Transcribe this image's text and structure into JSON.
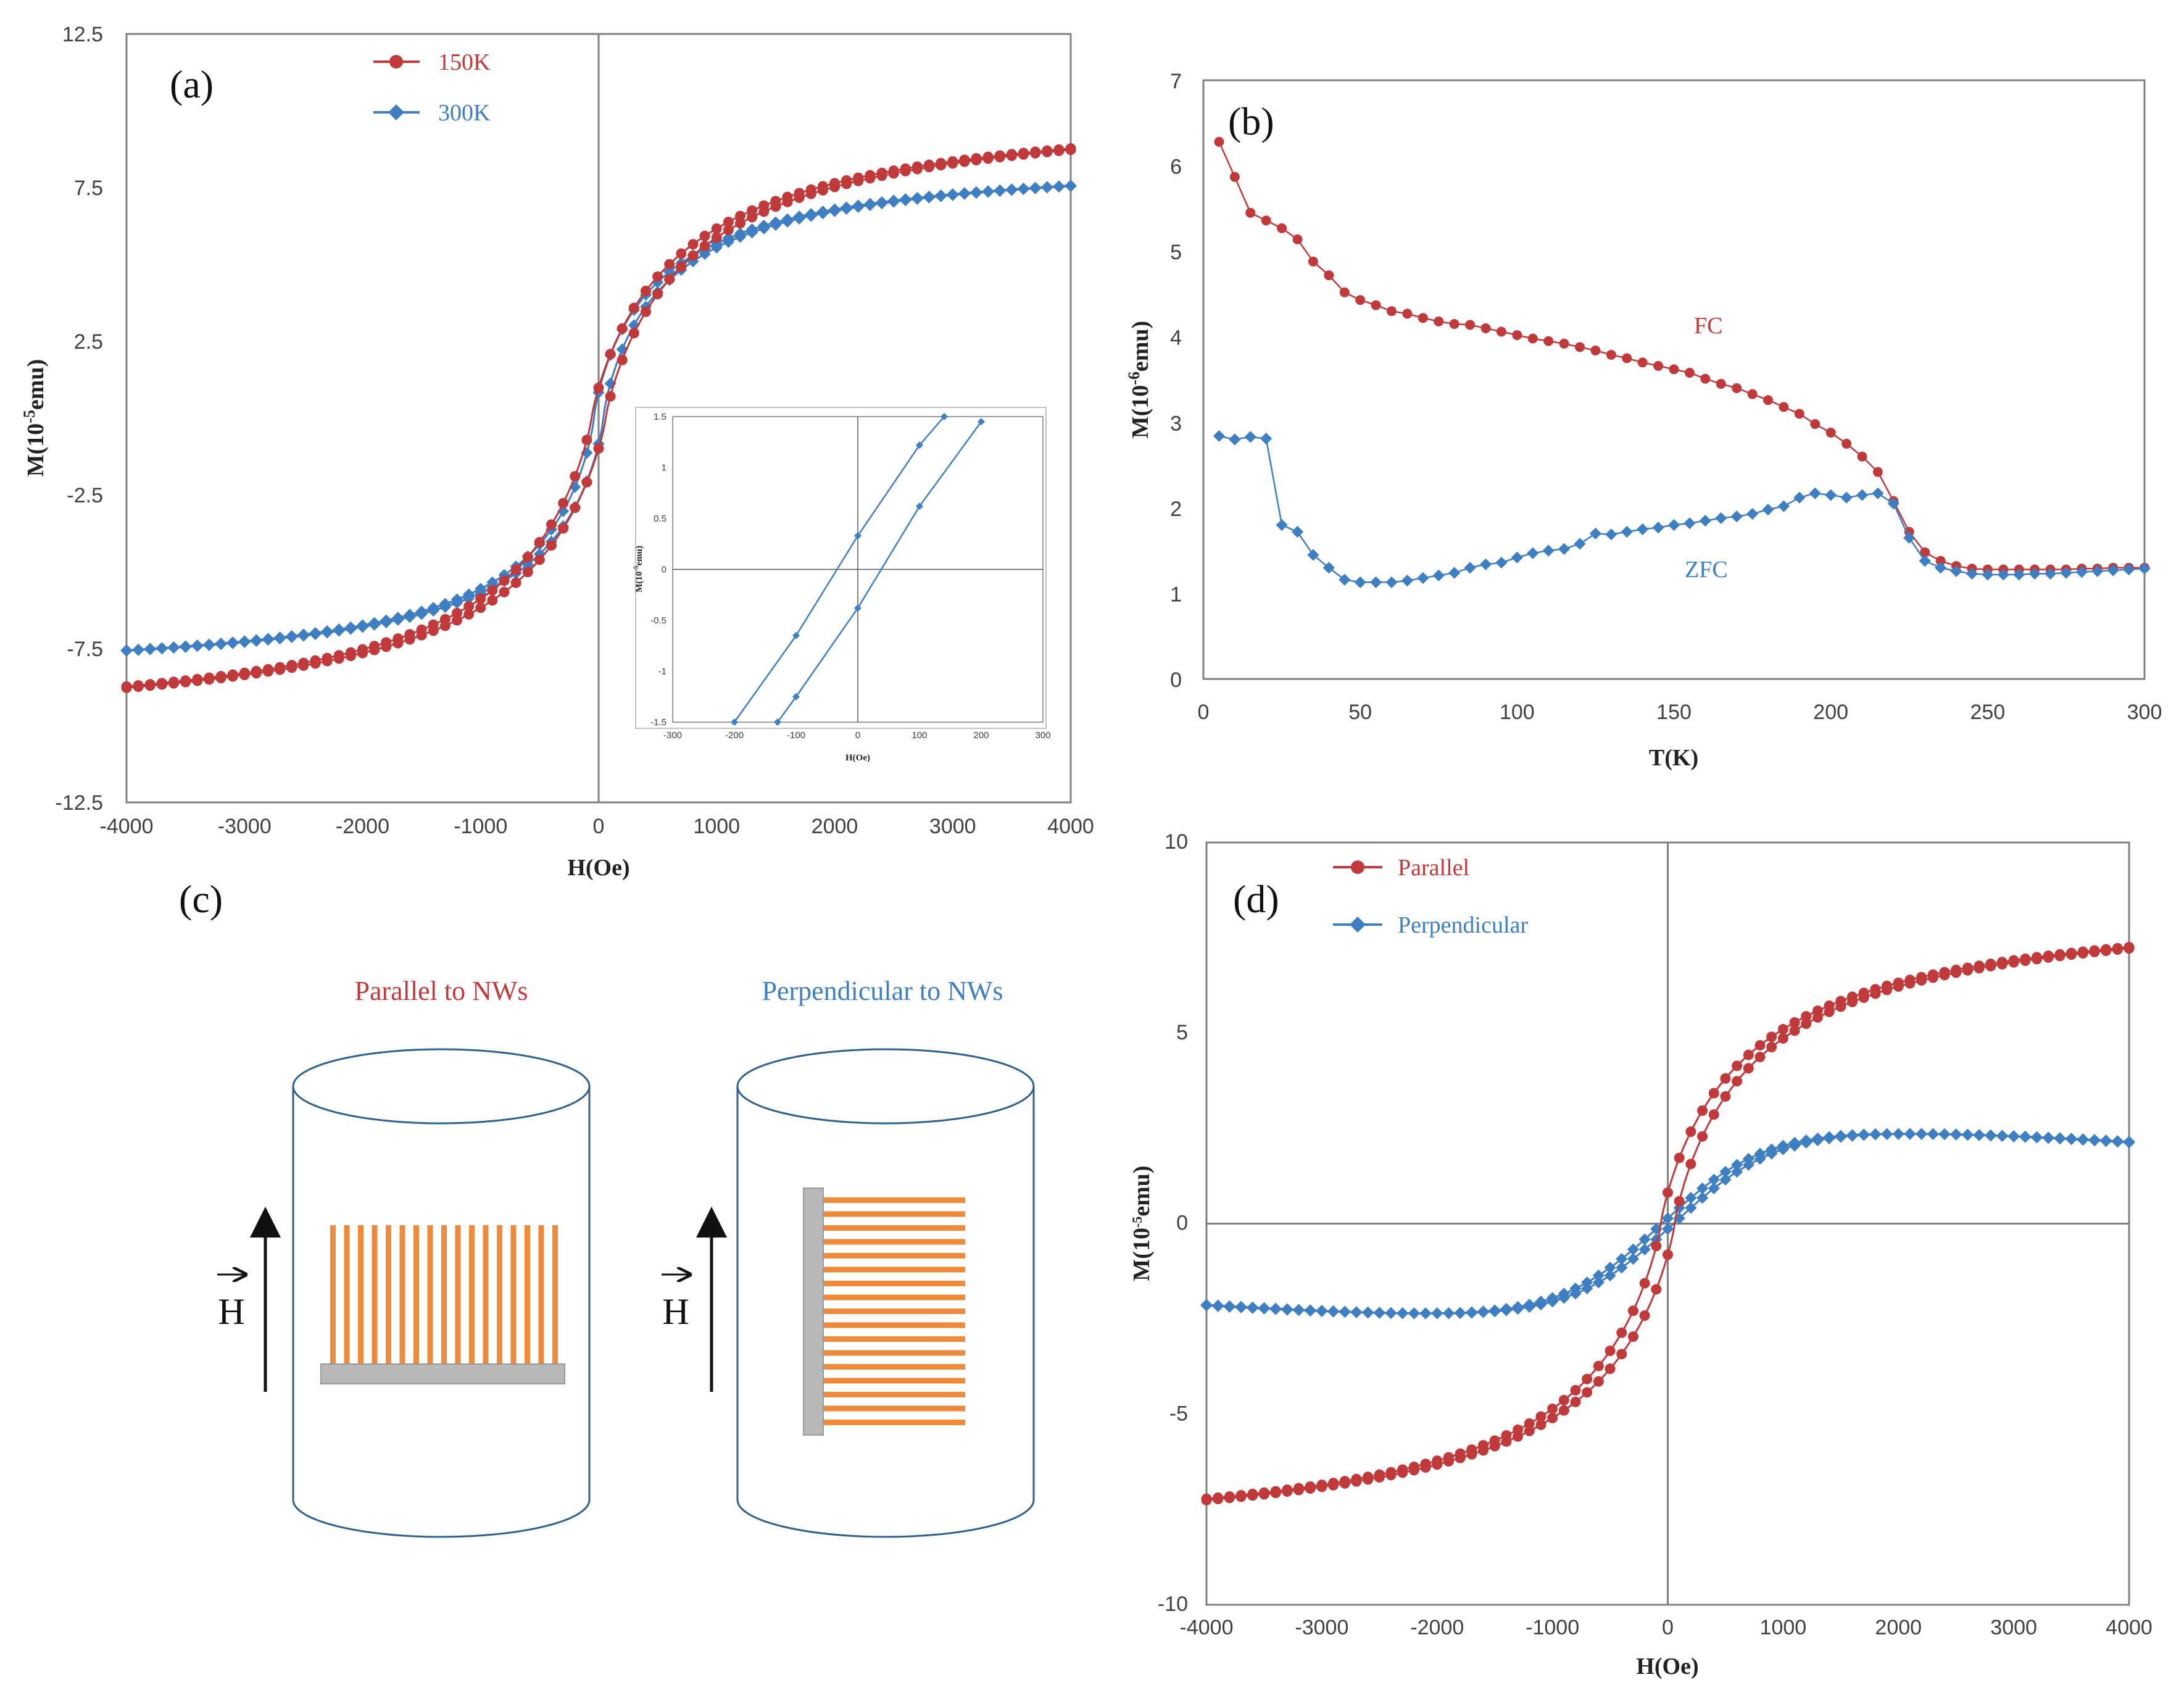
{
  "colors": {
    "red": "#c0393b",
    "blue": "#3f7fc1",
    "orange": "#ee8a3a",
    "grey": "#b8b8b8"
  },
  "chart_data": [
    {
      "type": "line",
      "panel": "(a)",
      "xlabel": "H(Oe)",
      "ylabel": "M(10",
      "ylabel_sup": "-5",
      "ylabel_end": "emu)",
      "xlim": [
        -4000,
        4000
      ],
      "ylim": [
        -12.5,
        12.5
      ],
      "xticks": [
        "-4000",
        "-3000",
        "-2000",
        "-1000",
        "0",
        "1000",
        "2000",
        "3000",
        "4000"
      ],
      "yticks": [
        "12.5",
        "7.5",
        "2.5",
        "-2.5",
        "-7.5",
        "-12.5"
      ],
      "series": [
        {
          "name": "150K",
          "color": "#c0393b",
          "marker": "circle",
          "model": {
            "Ms": 10.4,
            "H0": 900,
            "p": 0.85,
            "Hc": 60
          }
        },
        {
          "name": "300K",
          "color": "#3f7fc1",
          "marker": "diamond",
          "model": {
            "Ms": 8.6,
            "H0": 700,
            "p": 0.8,
            "Hc": 40
          }
        }
      ],
      "inset": {
        "xlabel": "H(Oe)",
        "ylabel": "M(10",
        "ylabel_sup": "-5",
        "ylabel_end": "emu)",
        "xlim": [
          -300,
          300
        ],
        "ylim": [
          -1.5,
          1.5
        ],
        "xticks": [
          "-300",
          "-200",
          "-100",
          "0",
          "100",
          "200",
          "300"
        ],
        "yticks": [
          "1.5",
          "1",
          "0.5",
          "0",
          "-0.5",
          "-1",
          "-1.5"
        ],
        "branches": [
          {
            "x": [
              -200,
              -100,
              0,
              100,
              140
            ],
            "y": [
              -1.5,
              -0.65,
              0.33,
              1.22,
              1.5
            ]
          },
          {
            "x": [
              -130,
              -100,
              0,
              100,
              200
            ],
            "y": [
              -1.5,
              -1.25,
              -0.38,
              0.62,
              1.45
            ]
          }
        ]
      }
    },
    {
      "type": "line",
      "panel": "(b)",
      "xlabel": "T(K)",
      "ylabel": "M(10",
      "ylabel_sup": "-6",
      "ylabel_end": "emu)",
      "xlim": [
        0,
        300
      ],
      "ylim": [
        0,
        7
      ],
      "xticks": [
        "0",
        "50",
        "100",
        "150",
        "200",
        "250",
        "300"
      ],
      "yticks": [
        "7",
        "6",
        "5",
        "4",
        "3",
        "2",
        "1",
        "0"
      ],
      "series": [
        {
          "name": "FC",
          "color": "#c0393b",
          "marker": "circle",
          "x": [
            5,
            10,
            15,
            20,
            25,
            30,
            35,
            40,
            45,
            50,
            55,
            60,
            65,
            70,
            75,
            80,
            85,
            90,
            95,
            100,
            105,
            110,
            115,
            120,
            125,
            130,
            135,
            140,
            145,
            150,
            155,
            160,
            165,
            170,
            175,
            180,
            185,
            190,
            195,
            200,
            205,
            210,
            215,
            220,
            225,
            230,
            235,
            240,
            245,
            250,
            255,
            260,
            265,
            270,
            275,
            280,
            285,
            290,
            295,
            300
          ],
          "y": [
            6.28,
            5.87,
            5.45,
            5.36,
            5.27,
            5.14,
            4.88,
            4.72,
            4.52,
            4.43,
            4.37,
            4.3,
            4.27,
            4.22,
            4.18,
            4.15,
            4.14,
            4.1,
            4.06,
            4.02,
            3.98,
            3.95,
            3.92,
            3.88,
            3.84,
            3.79,
            3.75,
            3.7,
            3.66,
            3.62,
            3.58,
            3.51,
            3.45,
            3.4,
            3.33,
            3.26,
            3.18,
            3.1,
            2.98,
            2.88,
            2.75,
            2.6,
            2.42,
            2.08,
            1.72,
            1.48,
            1.38,
            1.32,
            1.29,
            1.28,
            1.28,
            1.28,
            1.28,
            1.28,
            1.28,
            1.29,
            1.29,
            1.3,
            1.3,
            1.3
          ]
        },
        {
          "name": "ZFC",
          "color": "#3f7fc1",
          "marker": "diamond",
          "x": [
            5,
            10,
            15,
            20,
            25,
            30,
            35,
            40,
            45,
            50,
            55,
            60,
            65,
            70,
            75,
            80,
            85,
            90,
            95,
            100,
            105,
            110,
            115,
            120,
            125,
            130,
            135,
            140,
            145,
            150,
            155,
            160,
            165,
            170,
            175,
            180,
            185,
            190,
            195,
            200,
            205,
            210,
            215,
            220,
            225,
            230,
            235,
            240,
            245,
            250,
            255,
            260,
            265,
            270,
            275,
            280,
            285,
            290,
            295,
            300
          ],
          "y": [
            2.84,
            2.8,
            2.83,
            2.81,
            1.8,
            1.72,
            1.45,
            1.3,
            1.16,
            1.13,
            1.13,
            1.13,
            1.15,
            1.18,
            1.21,
            1.24,
            1.3,
            1.34,
            1.36,
            1.42,
            1.47,
            1.5,
            1.52,
            1.58,
            1.7,
            1.69,
            1.72,
            1.75,
            1.77,
            1.8,
            1.82,
            1.85,
            1.88,
            1.9,
            1.93,
            1.98,
            2.02,
            2.12,
            2.17,
            2.15,
            2.12,
            2.15,
            2.17,
            2.05,
            1.65,
            1.38,
            1.3,
            1.26,
            1.23,
            1.22,
            1.22,
            1.22,
            1.23,
            1.23,
            1.24,
            1.25,
            1.26,
            1.27,
            1.28,
            1.29
          ]
        }
      ]
    },
    {
      "type": "line",
      "panel": "(d)",
      "xlabel": "H(Oe)",
      "ylabel": "M(10",
      "ylabel_sup": "-5",
      "ylabel_end": "emu)",
      "xlim": [
        -4000,
        4000
      ],
      "ylim": [
        -10,
        10
      ],
      "xticks": [
        "-4000",
        "-3000",
        "-2000",
        "-1000",
        "0",
        "1000",
        "2000",
        "3000",
        "4000"
      ],
      "yticks": [
        "10",
        "5",
        "0",
        "-5",
        "-10"
      ],
      "series": [
        {
          "name": "Parallel",
          "color": "#c0393b",
          "marker": "circle",
          "model": {
            "Ms": 8.6,
            "H0": 900,
            "p": 0.85,
            "Hc": 60
          }
        },
        {
          "name": "Perpendicular",
          "color": "#3f7fc1",
          "marker": "diamond",
          "model": {
            "Ms": 2.5,
            "H0": 900,
            "p": 1.0,
            "Hc": 50,
            "neg": 4.5e-05
          }
        }
      ]
    }
  ],
  "diagram": {
    "panel": "(c)",
    "left_label": "Parallel  to NWs",
    "right_label": "Perpendicular to NWs",
    "field_symbol": "H",
    "nanowire_count": 17
  }
}
